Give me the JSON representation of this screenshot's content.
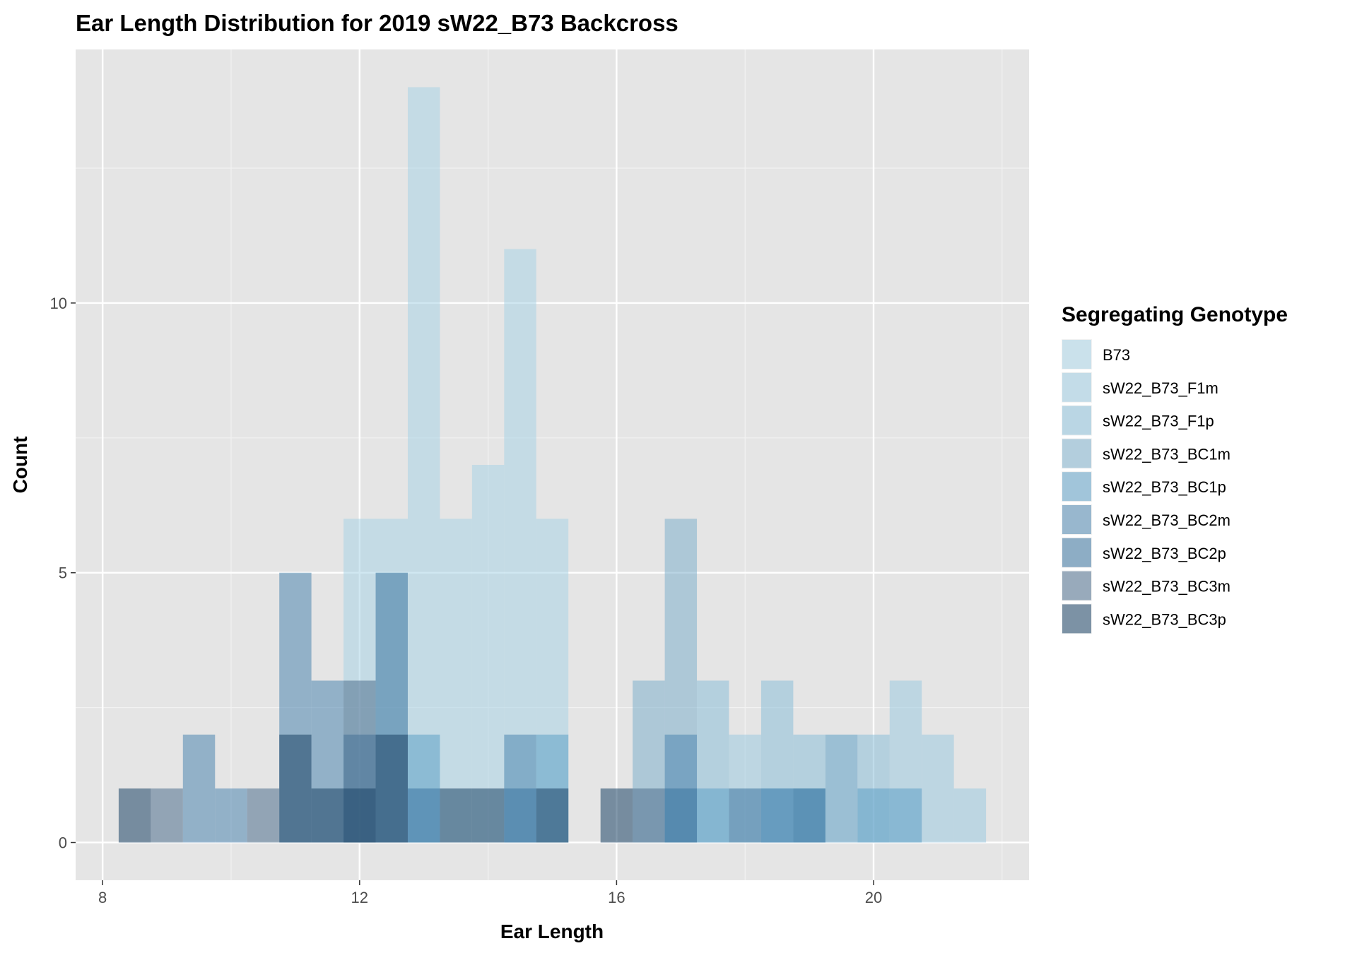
{
  "chart_data": {
    "type": "histogram",
    "title": "Ear Length Distribution for 2019 sW22_B73 Backcross",
    "xlabel": "Ear Length",
    "ylabel": "Count",
    "xlim": [
      7.58,
      22.42
    ],
    "ylim": [
      -0.7,
      14.7
    ],
    "xticks": [
      8,
      12,
      16,
      20
    ],
    "yticks": [
      0,
      5,
      10
    ],
    "bin_width": 0.5,
    "grid": true,
    "position": "identity (overlaid, semi-transparent)",
    "legend": {
      "title": "Segregating Genotype",
      "placement": "right"
    },
    "series": [
      {
        "name": "B73",
        "color": "#a9d3e6",
        "bins": {
          "12": 6,
          "12.5": 6,
          "13": 14,
          "13.5": 6,
          "14": 7,
          "14.5": 11,
          "15": 6
        }
      },
      {
        "name": "sW22_B73_F1m",
        "color": "#9ccbe0",
        "bins": {
          "18": 2,
          "20.5": 3,
          "21": 2,
          "21.5": 1
        }
      },
      {
        "name": "sW22_B73_F1p",
        "color": "#8dbfd8",
        "bins": {
          "17.5": 3,
          "18.5": 3,
          "19": 2,
          "20": 2
        }
      },
      {
        "name": "sW22_B73_BC1m",
        "color": "#7fb0cc",
        "bins": {
          "16.5": 3,
          "17": 6
        }
      },
      {
        "name": "sW22_B73_BC1p",
        "color": "#5fa0c6",
        "bins": {
          "13": 2,
          "15": 2,
          "17.5": 1,
          "18.5": 1,
          "19": 1,
          "19.5": 2,
          "20": 1,
          "20.5": 1
        }
      },
      {
        "name": "sW22_B73_BC2m",
        "color": "#4f87b0",
        "bins": {
          "9.5": 2,
          "10": 1,
          "11": 5,
          "11.5": 3,
          "14.5": 2,
          "17": 2,
          "18.5": 1
        }
      },
      {
        "name": "sW22_B73_BC2p",
        "color": "#3a74a0",
        "bins": {
          "12.5": 5,
          "12": 2,
          "13": 1,
          "14.5": 1,
          "17": 1,
          "18": 1,
          "19": 1
        }
      },
      {
        "name": "sW22_B73_BC3m",
        "color": "#4f6f8e",
        "bins": {
          "9": 1,
          "10.5": 1,
          "12": 3,
          "16.5": 1
        }
      },
      {
        "name": "sW22_B73_BC3p",
        "color": "#1c4466",
        "bins": {
          "8.5": 1,
          "11": 2,
          "11.5": 1,
          "12": 1,
          "12.5": 2,
          "13.5": 1,
          "14": 1,
          "15": 1,
          "16": 1
        }
      }
    ]
  }
}
